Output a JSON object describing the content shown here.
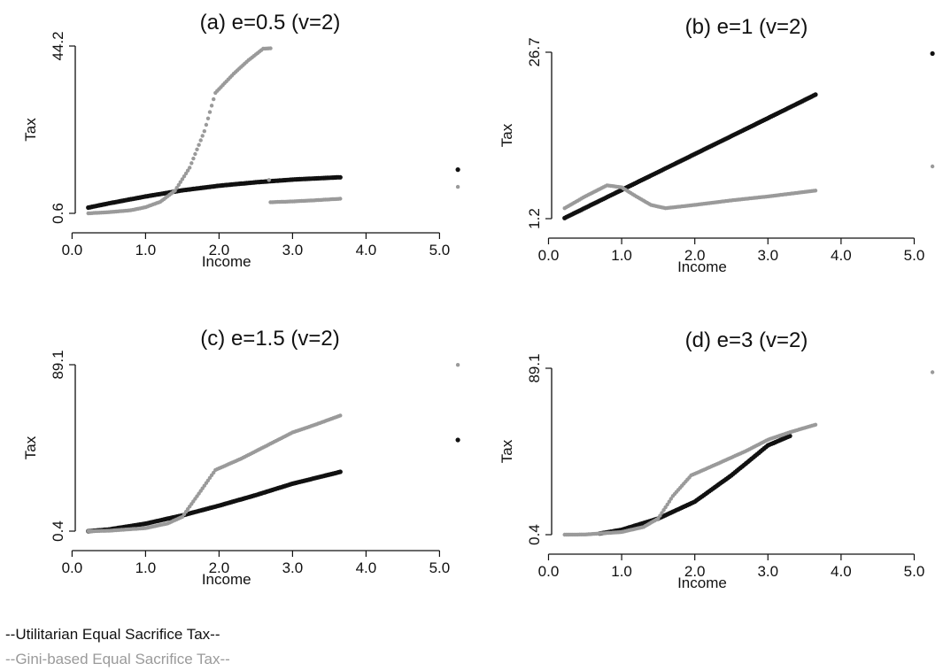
{
  "legend": {
    "utilitarian": "--Utilitarian Equal Sacrifice Tax--",
    "gini": "--Gini-based Equal Sacrifice Tax--"
  },
  "colors": {
    "utilitarian": "#111111",
    "gini": "#9a9a9a"
  },
  "chart_data": [
    {
      "type": "scatter",
      "title": "(a) e=0.5 (v=2)",
      "xlabel": "Income",
      "ylabel": "Tax",
      "xticks": [
        "0.0",
        "1.0",
        "2.0",
        "3.0",
        "4.0",
        "5.0"
      ],
      "yticks": [
        "0.6",
        "44.2"
      ],
      "xlim": [
        0.2,
        5.2
      ],
      "ylim": [
        0.6,
        44.2
      ],
      "series": [
        {
          "key": "utilitarian",
          "points": [
            [
              0.22,
              2.1
            ],
            [
              0.5,
              3.2
            ],
            [
              1.0,
              5.0
            ],
            [
              1.5,
              6.6
            ],
            [
              2.0,
              7.8
            ],
            [
              2.5,
              8.7
            ],
            [
              3.0,
              9.4
            ],
            [
              3.3,
              9.7
            ],
            [
              3.65,
              10.0
            ],
            [
              5.25,
              12.0
            ]
          ]
        },
        {
          "key": "gini",
          "points": [
            [
              0.22,
              0.6
            ],
            [
              0.5,
              0.9
            ],
            [
              0.8,
              1.4
            ],
            [
              1.0,
              2.2
            ],
            [
              1.2,
              3.6
            ],
            [
              1.4,
              6.5
            ],
            [
              1.6,
              12.5
            ],
            [
              1.8,
              22.0
            ],
            [
              1.95,
              32.0
            ],
            [
              2.2,
              37.0
            ],
            [
              2.4,
              40.5
            ],
            [
              2.6,
              43.5
            ],
            [
              2.7,
              43.6
            ],
            [
              2.68,
              9.3
            ],
            [
              2.7,
              3.5
            ],
            [
              3.0,
              3.7
            ],
            [
              3.3,
              4.0
            ],
            [
              3.65,
              4.4
            ],
            [
              5.25,
              7.5
            ]
          ]
        }
      ]
    },
    {
      "type": "scatter",
      "title": "(b) e=1 (v=2)",
      "xlabel": "Income",
      "ylabel": "Tax",
      "xticks": [
        "0.0",
        "1.0",
        "2.0",
        "3.0",
        "4.0",
        "5.0"
      ],
      "yticks": [
        "1.2",
        "26.7"
      ],
      "xlim": [
        0.2,
        5.2
      ],
      "ylim": [
        1.2,
        26.7
      ],
      "series": [
        {
          "key": "utilitarian",
          "points": [
            [
              0.22,
              1.3
            ],
            [
              1.0,
              5.6
            ],
            [
              2.0,
              11.1
            ],
            [
              3.0,
              16.6
            ],
            [
              3.65,
              20.2
            ],
            [
              5.25,
              26.5
            ]
          ]
        },
        {
          "key": "gini",
          "points": [
            [
              0.22,
              2.8
            ],
            [
              0.5,
              4.6
            ],
            [
              0.8,
              6.3
            ],
            [
              1.0,
              6.0
            ],
            [
              1.2,
              4.6
            ],
            [
              1.4,
              3.3
            ],
            [
              1.6,
              2.8
            ],
            [
              2.0,
              3.3
            ],
            [
              2.5,
              4.0
            ],
            [
              3.0,
              4.6
            ],
            [
              3.65,
              5.5
            ],
            [
              5.25,
              9.2
            ]
          ]
        }
      ]
    },
    {
      "type": "scatter",
      "title": "(c) e=1.5 (v=2)",
      "xlabel": "Income",
      "ylabel": "Tax",
      "xticks": [
        "0.0",
        "1.0",
        "2.0",
        "3.0",
        "4.0",
        "5.0"
      ],
      "yticks": [
        "0.4",
        "89.1"
      ],
      "xlim": [
        0.2,
        5.2
      ],
      "ylim": [
        0.4,
        89.1
      ],
      "series": [
        {
          "key": "utilitarian",
          "points": [
            [
              0.22,
              0.4
            ],
            [
              0.5,
              1.3
            ],
            [
              1.0,
              4.4
            ],
            [
              1.5,
              8.8
            ],
            [
              2.0,
              14.0
            ],
            [
              2.5,
              19.6
            ],
            [
              3.0,
              25.7
            ],
            [
              3.3,
              28.6
            ],
            [
              3.65,
              32.0
            ],
            [
              5.25,
              49.0
            ]
          ]
        },
        {
          "key": "gini",
          "points": [
            [
              0.22,
              0.4
            ],
            [
              0.5,
              0.6
            ],
            [
              1.0,
              2.0
            ],
            [
              1.3,
              4.5
            ],
            [
              1.5,
              8.0
            ],
            [
              1.7,
              19.0
            ],
            [
              1.95,
              33.0
            ],
            [
              2.3,
              39.0
            ],
            [
              2.7,
              47.0
            ],
            [
              3.0,
              53.0
            ],
            [
              3.3,
              57.0
            ],
            [
              3.65,
              62.0
            ],
            [
              5.25,
              89.0
            ]
          ]
        }
      ]
    },
    {
      "type": "scatter",
      "title": "(d) e=3 (v=2)",
      "xlabel": "Income",
      "ylabel": "Tax",
      "xticks": [
        "0.0",
        "1.0",
        "2.0",
        "3.0",
        "4.0",
        "5.0"
      ],
      "yticks": [
        "0.4",
        "89.1"
      ],
      "xlim": [
        0.2,
        5.2
      ],
      "ylim": [
        0.4,
        89.1
      ],
      "series": [
        {
          "key": "utilitarian",
          "points": [
            [
              0.7,
              1.0
            ],
            [
              1.0,
              3.0
            ],
            [
              1.5,
              9.0
            ],
            [
              2.0,
              18.0
            ],
            [
              2.5,
              32.0
            ],
            [
              3.0,
              48.0
            ],
            [
              3.3,
              53.0
            ]
          ]
        },
        {
          "key": "gini",
          "points": [
            [
              0.22,
              0.4
            ],
            [
              0.5,
              0.5
            ],
            [
              1.0,
              1.8
            ],
            [
              1.3,
              4.5
            ],
            [
              1.5,
              9.0
            ],
            [
              1.7,
              21.0
            ],
            [
              1.95,
              32.0
            ],
            [
              2.3,
              38.0
            ],
            [
              2.7,
              45.0
            ],
            [
              3.0,
              51.0
            ],
            [
              3.3,
              55.0
            ],
            [
              3.65,
              59.0
            ],
            [
              5.25,
              87.0
            ]
          ]
        }
      ]
    }
  ]
}
